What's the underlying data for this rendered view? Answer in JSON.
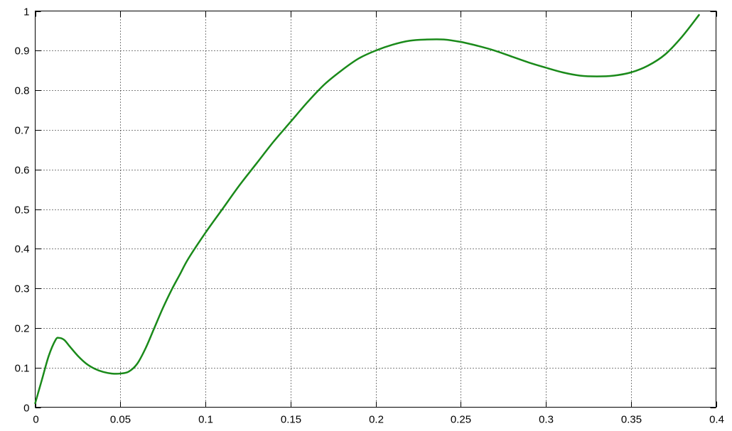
{
  "chart_data": {
    "type": "line",
    "title": "",
    "xlabel": "",
    "ylabel": "",
    "xlim": [
      0,
      0.4
    ],
    "ylim": [
      0,
      1
    ],
    "grid": true,
    "x_ticks": [
      0,
      0.05,
      0.1,
      0.15,
      0.2,
      0.25,
      0.3,
      0.35,
      0.4
    ],
    "x_tick_labels": [
      "0",
      "0.05",
      "0.1",
      "0.15",
      "0.2",
      "0.25",
      "0.3",
      "0.35",
      "0.4"
    ],
    "y_ticks": [
      0,
      0.1,
      0.2,
      0.3,
      0.4,
      0.5,
      0.6,
      0.7,
      0.8,
      0.9,
      1
    ],
    "y_tick_labels": [
      "0",
      "0.1",
      "0.2",
      "0.3",
      "0.4",
      "0.5",
      "0.6",
      "0.7",
      "0.8",
      "0.9",
      "1"
    ],
    "series": [
      {
        "color": "#1a8a1a",
        "x": [
          0,
          0.004,
          0.008,
          0.012,
          0.014,
          0.017,
          0.02,
          0.025,
          0.03,
          0.035,
          0.04,
          0.045,
          0.05,
          0.055,
          0.06,
          0.065,
          0.07,
          0.075,
          0.08,
          0.085,
          0.09,
          0.1,
          0.11,
          0.12,
          0.13,
          0.14,
          0.15,
          0.16,
          0.17,
          0.18,
          0.19,
          0.2,
          0.21,
          0.22,
          0.23,
          0.24,
          0.25,
          0.26,
          0.27,
          0.28,
          0.29,
          0.3,
          0.31,
          0.32,
          0.33,
          0.34,
          0.35,
          0.36,
          0.37,
          0.38,
          0.39
        ],
        "y": [
          0.01,
          0.07,
          0.13,
          0.17,
          0.175,
          0.17,
          0.155,
          0.13,
          0.11,
          0.097,
          0.089,
          0.085,
          0.085,
          0.09,
          0.11,
          0.15,
          0.2,
          0.25,
          0.295,
          0.335,
          0.375,
          0.44,
          0.5,
          0.56,
          0.615,
          0.67,
          0.72,
          0.77,
          0.815,
          0.85,
          0.88,
          0.9,
          0.915,
          0.925,
          0.928,
          0.928,
          0.922,
          0.912,
          0.9,
          0.885,
          0.87,
          0.857,
          0.845,
          0.837,
          0.835,
          0.837,
          0.845,
          0.862,
          0.89,
          0.935,
          0.99
        ]
      }
    ]
  }
}
